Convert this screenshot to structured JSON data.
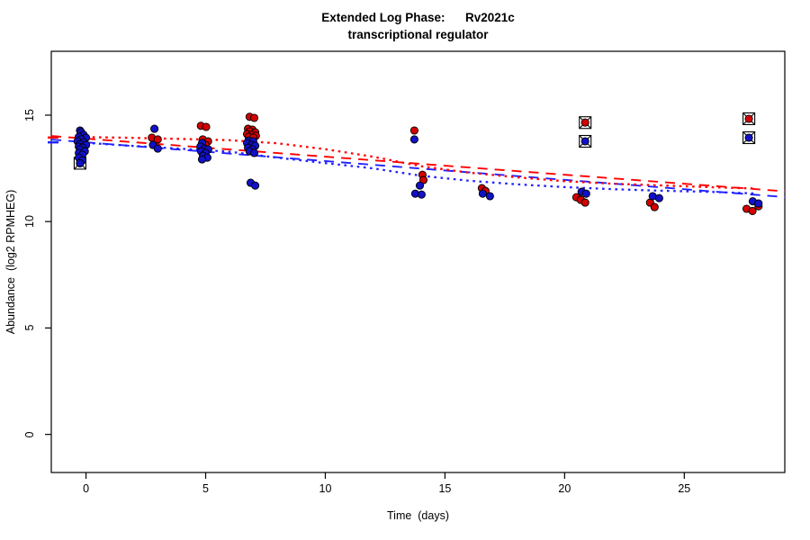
{
  "chart_data": {
    "type": "scatter",
    "title": "Extended Log Phase:      Rv2021c",
    "subtitle": "transcriptional regulator",
    "xlabel": "Time  (days)",
    "ylabel": "Abundance  (log2 RPMHEG)",
    "xlim": [
      -1.45,
      29.2
    ],
    "ylim": [
      -1.79,
      18.0
    ],
    "xticks": [
      0,
      5,
      10,
      15,
      20,
      25
    ],
    "yticks": [
      0,
      5,
      10,
      15
    ],
    "grid": false,
    "legend": "none",
    "colors": {
      "red_point": "#d40000",
      "blue_point": "#1111c8",
      "red_line": "#ff0000",
      "blue_line": "#2222ff",
      "point_outline": "#000000",
      "axis": "#000000",
      "outlier_box": "#000000"
    },
    "axis_rug_marks": [
      {
        "y": 13.95,
        "color": "#ff0000"
      },
      {
        "y": 13.72,
        "color": "#2222ff"
      }
    ],
    "series": [
      {
        "name": "red-points",
        "color_key": "red_point",
        "points": [
          [
            2.75,
            13.94
          ],
          [
            3.0,
            13.86
          ],
          [
            4.8,
            14.5
          ],
          [
            5.02,
            14.45
          ],
          [
            4.88,
            13.86
          ],
          [
            5.1,
            13.77
          ],
          [
            5.0,
            13.6
          ],
          [
            6.84,
            14.92
          ],
          [
            7.03,
            14.87
          ],
          [
            6.77,
            14.36
          ],
          [
            6.95,
            14.32
          ],
          [
            6.84,
            14.24
          ],
          [
            7.07,
            14.19
          ],
          [
            6.73,
            14.11
          ],
          [
            6.92,
            14.07
          ],
          [
            7.1,
            14.03
          ],
          [
            6.8,
            13.98
          ],
          [
            6.99,
            13.94
          ],
          [
            13.72,
            14.28
          ],
          [
            14.06,
            12.2
          ],
          [
            14.1,
            11.95
          ],
          [
            16.54,
            11.57
          ],
          [
            16.69,
            11.44
          ],
          [
            20.49,
            11.14
          ],
          [
            20.68,
            11.02
          ],
          [
            20.86,
            10.89
          ],
          [
            23.57,
            10.89
          ],
          [
            23.76,
            10.68
          ],
          [
            27.6,
            10.6
          ],
          [
            27.85,
            10.5
          ],
          [
            28.1,
            10.72
          ]
        ]
      },
      {
        "name": "blue-points",
        "color_key": "blue_point",
        "points": [
          [
            -0.25,
            14.28
          ],
          [
            -0.2,
            14.2
          ],
          [
            -0.1,
            14.07
          ],
          [
            -0.3,
            13.98
          ],
          [
            0.0,
            13.94
          ],
          [
            -0.2,
            13.86
          ],
          [
            -0.35,
            13.77
          ],
          [
            -0.1,
            13.73
          ],
          [
            -0.25,
            13.64
          ],
          [
            0.0,
            13.6
          ],
          [
            -0.3,
            13.52
          ],
          [
            -0.15,
            13.47
          ],
          [
            -0.25,
            13.39
          ],
          [
            -0.05,
            13.3
          ],
          [
            -0.3,
            13.22
          ],
          [
            -0.15,
            13.14
          ],
          [
            -0.3,
            13.0
          ],
          [
            -0.15,
            12.88
          ],
          [
            -0.25,
            12.74
          ],
          [
            2.86,
            14.36
          ],
          [
            2.8,
            13.6
          ],
          [
            3.0,
            13.43
          ],
          [
            4.85,
            13.69
          ],
          [
            4.78,
            13.52
          ],
          [
            4.96,
            13.43
          ],
          [
            5.11,
            13.39
          ],
          [
            4.81,
            13.3
          ],
          [
            5.0,
            13.22
          ],
          [
            4.89,
            13.09
          ],
          [
            5.07,
            13.0
          ],
          [
            4.85,
            12.92
          ],
          [
            6.8,
            13.81
          ],
          [
            6.99,
            13.77
          ],
          [
            6.73,
            13.69
          ],
          [
            6.92,
            13.6
          ],
          [
            7.07,
            13.56
          ],
          [
            6.77,
            13.47
          ],
          [
            6.95,
            13.39
          ],
          [
            6.84,
            13.3
          ],
          [
            7.03,
            13.22
          ],
          [
            6.88,
            11.82
          ],
          [
            7.07,
            11.69
          ],
          [
            13.72,
            13.86
          ],
          [
            13.95,
            11.69
          ],
          [
            13.76,
            11.31
          ],
          [
            14.02,
            11.27
          ],
          [
            16.58,
            11.31
          ],
          [
            16.88,
            11.19
          ],
          [
            20.71,
            11.4
          ],
          [
            20.9,
            11.31
          ],
          [
            23.68,
            11.19
          ],
          [
            23.95,
            11.1
          ],
          [
            27.86,
            10.95
          ],
          [
            28.1,
            10.85
          ]
        ]
      }
    ],
    "outlier_marked_points": [
      {
        "x": -0.25,
        "y": 12.74,
        "color_key": "blue_point"
      },
      {
        "x": 20.86,
        "y": 14.65,
        "color_key": "red_point"
      },
      {
        "x": 20.86,
        "y": 13.77,
        "color_key": "blue_point"
      },
      {
        "x": 27.7,
        "y": 14.83,
        "color_key": "red_point"
      },
      {
        "x": 27.7,
        "y": 13.94,
        "color_key": "blue_point"
      }
    ],
    "lines": [
      {
        "name": "red-dashed-linear-fit",
        "color_key": "red_line",
        "style": "dashed",
        "points": [
          [
            -1.45,
            14.02
          ],
          [
            29.2,
            11.42
          ]
        ]
      },
      {
        "name": "blue-dashed-linear-fit",
        "color_key": "blue_line",
        "style": "dashed",
        "points": [
          [
            -1.45,
            13.85
          ],
          [
            29.2,
            11.15
          ]
        ]
      },
      {
        "name": "red-dotted-lowess",
        "color_key": "red_line",
        "style": "dotted",
        "points": [
          [
            0,
            13.97
          ],
          [
            2,
            13.93
          ],
          [
            4,
            13.88
          ],
          [
            6,
            13.82
          ],
          [
            8,
            13.68
          ],
          [
            10,
            13.4
          ],
          [
            12,
            13.05
          ],
          [
            14,
            12.6
          ],
          [
            16,
            12.3
          ],
          [
            18,
            12.08
          ],
          [
            20,
            11.9
          ],
          [
            22,
            11.78
          ],
          [
            24,
            11.7
          ],
          [
            26,
            11.62
          ],
          [
            28,
            11.55
          ]
        ]
      },
      {
        "name": "blue-dotted-lowess",
        "color_key": "blue_line",
        "style": "dotted",
        "points": [
          [
            0,
            13.7
          ],
          [
            2,
            13.55
          ],
          [
            4,
            13.42
          ],
          [
            6,
            13.28
          ],
          [
            8,
            13.0
          ],
          [
            10,
            12.75
          ],
          [
            12,
            12.5
          ],
          [
            14,
            12.15
          ],
          [
            16,
            11.92
          ],
          [
            18,
            11.75
          ],
          [
            20,
            11.62
          ],
          [
            22,
            11.52
          ],
          [
            24,
            11.45
          ],
          [
            26,
            11.4
          ],
          [
            28,
            11.32
          ]
        ]
      }
    ]
  }
}
